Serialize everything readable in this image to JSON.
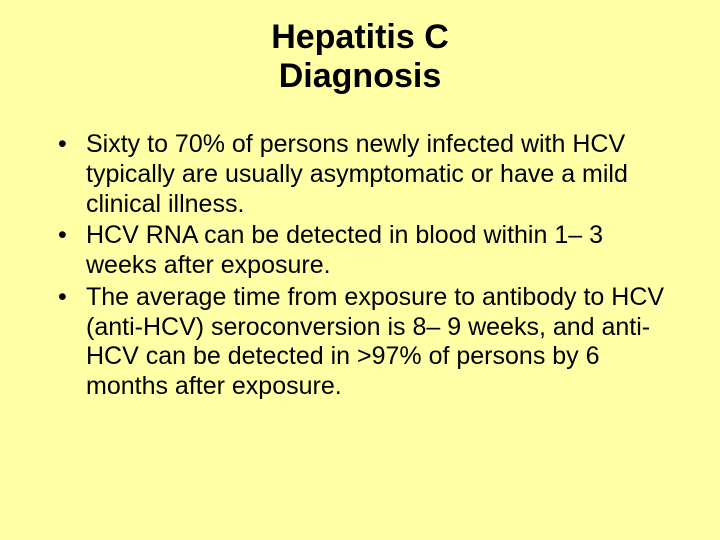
{
  "slide": {
    "background_color": "#ffffa6",
    "text_color": "#000000",
    "title": {
      "line1": "Hepatitis C",
      "line2": "Diagnosis",
      "font_size": 34,
      "font_weight": "bold",
      "align": "center"
    },
    "bullets": {
      "font_size": 25,
      "items": [
        "Sixty to 70% of persons newly infected with HCV typically are usually asymptomatic or have a mild clinical illness.",
        "HCV RNA can be detected in blood within 1– 3 weeks after exposure.",
        "The average time from exposure to antibody to HCV (anti-HCV) seroconversion is 8– 9 weeks, and anti-HCV can be detected in >97% of persons by 6 months after exposure."
      ]
    }
  }
}
